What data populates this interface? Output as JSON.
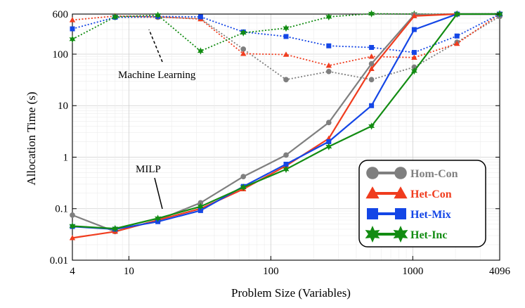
{
  "chart_data": {
    "type": "line",
    "x_scale": "log",
    "y_scale": "log",
    "xlabel": "Problem Size (Variables)",
    "ylabel": "Allocation Time (s)",
    "xlim": [
      4,
      4096
    ],
    "ylim": [
      0.01,
      600
    ],
    "x_ticks": [
      4,
      10,
      100,
      1000,
      4096
    ],
    "x_tick_labels": [
      "4",
      "10",
      "100",
      "1000",
      "4096"
    ],
    "y_ticks": [
      0.01,
      0.1,
      1,
      10,
      100,
      600
    ],
    "y_tick_labels": [
      "0.01",
      "0.1",
      "1",
      "10",
      "100",
      "600"
    ],
    "x": [
      4,
      8,
      16,
      32,
      64,
      128,
      256,
      512,
      1024,
      2048,
      4096
    ],
    "groups": [
      {
        "name": "MILP",
        "style": "solid",
        "series": [
          {
            "name": "Hom-Con",
            "color": "#7f7f7f",
            "marker": "circle",
            "values": [
              0.075,
              0.036,
              0.06,
              0.13,
              0.42,
              1.1,
              4.7,
              65,
              580,
              600,
              600
            ]
          },
          {
            "name": "Het-Con",
            "color": "#f03c1e",
            "marker": "triangle",
            "values": [
              0.027,
              0.036,
              0.06,
              0.1,
              0.24,
              0.68,
              2.3,
              52,
              550,
              600,
              600
            ]
          },
          {
            "name": "Het-Mix",
            "color": "#1446e6",
            "marker": "square",
            "values": [
              0.045,
              0.04,
              0.056,
              0.092,
              0.27,
              0.73,
              2.0,
              10,
              300,
              600,
              600
            ]
          },
          {
            "name": "Het-Inc",
            "color": "#128c12",
            "marker": "star",
            "values": [
              0.046,
              0.041,
              0.065,
              0.11,
              0.26,
              0.58,
              1.6,
              4.0,
              47,
              600,
              600
            ]
          }
        ]
      },
      {
        "name": "Machine Learning",
        "style": "dotted",
        "series": [
          {
            "name": "Hom-Con",
            "color": "#7f7f7f",
            "marker": "circle",
            "values": [
              null,
              520,
              520,
              490,
              125,
              32,
              46,
              32,
              56,
              170,
              540
            ]
          },
          {
            "name": "Het-Con",
            "color": "#f03c1e",
            "marker": "triangle",
            "values": [
              460,
              550,
              530,
              480,
              102,
              98,
              60,
              90,
              86,
              160,
              600
            ]
          },
          {
            "name": "Het-Mix",
            "color": "#1446e6",
            "marker": "square",
            "values": [
              310,
              520,
              540,
              530,
              270,
              220,
              145,
              135,
              108,
              225,
              600
            ]
          },
          {
            "name": "Het-Inc",
            "color": "#128c12",
            "marker": "star",
            "values": [
              195,
              530,
              570,
              115,
              260,
              320,
              530,
              610,
              600,
              600,
              610
            ]
          }
        ]
      }
    ],
    "legend": {
      "position": "bottom-right",
      "entries": [
        "Hom-Con",
        "Het-Con",
        "Het-Mix",
        "Het-Inc"
      ]
    },
    "annotations": [
      "MILP",
      "Machine Learning"
    ],
    "grid": true
  }
}
